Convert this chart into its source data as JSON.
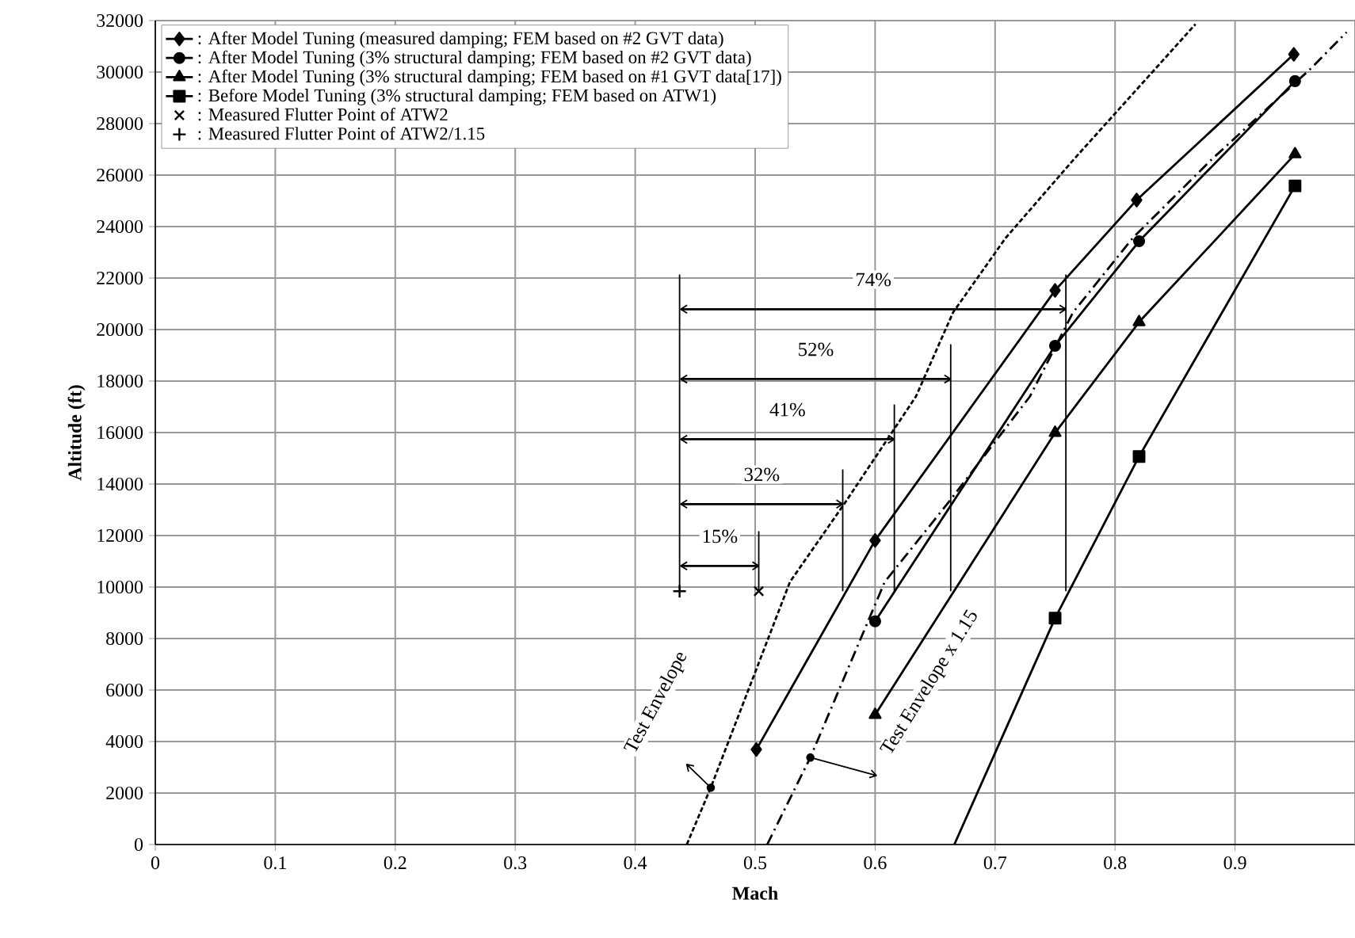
{
  "chart_data": {
    "type": "line",
    "xlabel": "Mach",
    "ylabel": "Altitude (ft)",
    "xlim": [
      0,
      1
    ],
    "ylim": [
      0,
      32000
    ],
    "xticks": [
      0,
      0.1,
      0.2,
      0.3,
      0.4,
      0.5,
      0.6,
      0.7,
      0.8,
      0.9
    ],
    "yticks": [
      0,
      2000,
      4000,
      6000,
      8000,
      10000,
      12000,
      14000,
      16000,
      18000,
      20000,
      22000,
      24000,
      26000,
      28000,
      30000,
      32000
    ],
    "grid": true,
    "legend": "top left",
    "series": [
      {
        "name": ": After Model Tuning (measured damping; FEM based on #2 GVT data)",
        "type": "line",
        "marker": "diamond",
        "line_style": "solid",
        "color": "#000000",
        "x": [
          0.501,
          0.6,
          0.75,
          0.818,
          0.949
        ],
        "values": [
          3690,
          11810,
          21520,
          25030,
          30690
        ]
      },
      {
        "name": ": After Model Tuning (3% structural damping; FEM based on #2 GVT data)",
        "type": "line",
        "marker": "circle",
        "line_style": "solid",
        "color": "#000000",
        "x": [
          0.6,
          0.75,
          0.82,
          0.95
        ],
        "values": [
          8670,
          19370,
          23430,
          29650
        ]
      },
      {
        "name": ": After Model Tuning (3% structural damping; FEM based on #1 GVT data[17])",
        "type": "line",
        "marker": "triangle",
        "line_style": "solid",
        "color": "#000000",
        "x": [
          0.6,
          0.75,
          0.82,
          0.95
        ],
        "values": [
          5040,
          15990,
          20290,
          26810
        ]
      },
      {
        "name": ": Before Model Tuning (3% structural damping; FEM based on ATW1)",
        "type": "line",
        "marker": "square",
        "line_style": "solid",
        "color": "#000000",
        "x": [
          0.75,
          0.82,
          0.95
        ],
        "values": [
          8790,
          15070,
          25580
        ]
      },
      {
        "name": ": Measured Flutter Point of ATW2",
        "type": "scatter",
        "marker": "cross",
        "color": "#000000",
        "x": [
          0.503
        ],
        "values": [
          9840
        ]
      },
      {
        "name": ": Measured Flutter Point of ATW2/1.15",
        "type": "scatter",
        "marker": "plus",
        "color": "#000000",
        "x": [
          0.437
        ],
        "values": [
          9840
        ]
      },
      {
        "type": "line",
        "marker": "none",
        "line_style": "solid",
        "color": "#000000",
        "x": [
          0.666,
          0.75
        ],
        "values": [
          0,
          8790
        ]
      },
      {
        "type": "line",
        "marker": "none",
        "line_style": "dashed",
        "color": "#000000",
        "x": [
          0.443,
          0.463,
          0.529,
          0.575,
          0.634,
          0.665,
          0.709,
          0.766,
          0.867
        ],
        "values": [
          0,
          2210,
          10200,
          13280,
          17400,
          20670,
          23570,
          26630,
          31860
        ]
      },
      {
        "type": "line",
        "marker": "none",
        "line_style": "dashdot",
        "color": "#000000",
        "x": [
          0.51,
          0.546,
          0.608,
          0.661,
          0.729,
          0.765,
          0.815,
          0.881,
          0.963,
          0.993
        ],
        "values": [
          0,
          3380,
          10200,
          13280,
          17400,
          20670,
          23570,
          26630,
          30130,
          31550
        ]
      },
      {
        "type": "line",
        "marker": "cross",
        "line_style": "solid",
        "color": "#000000",
        "x": [
          0.438,
          0.503
        ],
        "values": [
          10820,
          10820
        ]
      },
      {
        "type": "line",
        "marker": "cross",
        "line_style": "solid",
        "color": "#000000",
        "x": [
          0.438,
          0.573
        ],
        "values": [
          13220,
          13220
        ]
      },
      {
        "type": "line",
        "marker": "cross",
        "line_style": "solid",
        "color": "#000000",
        "x": [
          0.438,
          0.616
        ],
        "values": [
          15740,
          15740
        ]
      },
      {
        "type": "line",
        "marker": "cross",
        "line_style": "solid",
        "color": "#000000",
        "x": [
          0.438,
          0.663
        ],
        "values": [
          18080,
          18080
        ]
      },
      {
        "type": "line",
        "marker": "cross",
        "line_style": "solid",
        "color": "#000000",
        "x": [
          0.438,
          0.759
        ],
        "values": [
          20790,
          20790
        ]
      }
    ],
    "annotations": [
      "15%",
      "32%",
      "41%",
      "52%",
      "74%",
      {
        "text": "Test Envelope",
        "x": 0.463,
        "y": 2210
      },
      {
        "text": "Test Envelope x 1.15",
        "x": 0.546,
        "y": 3380
      }
    ]
  }
}
